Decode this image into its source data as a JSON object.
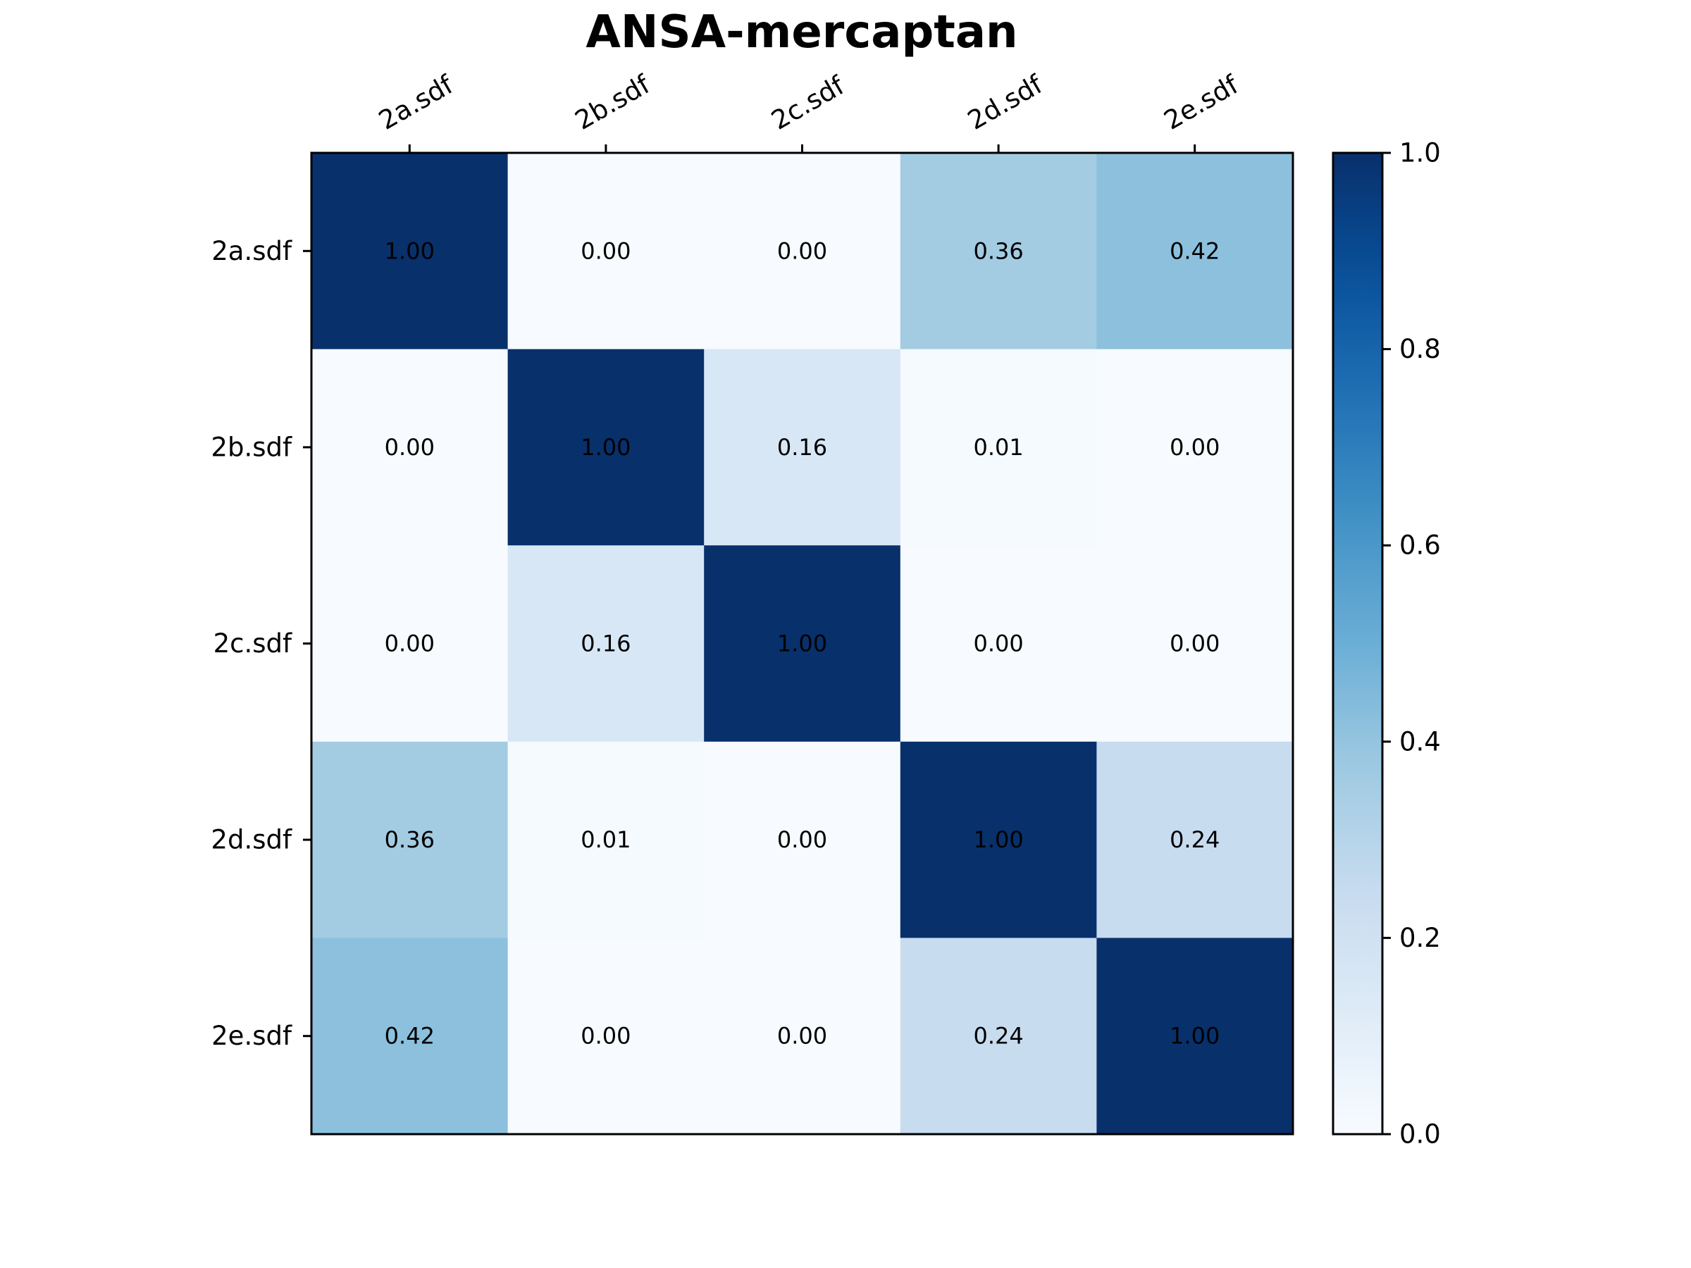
{
  "chart_data": {
    "type": "heatmap",
    "title": "ANSA-mercaptan",
    "x_labels": [
      "2a.sdf",
      "2b.sdf",
      "2c.sdf",
      "2d.sdf",
      "2e.sdf"
    ],
    "y_labels": [
      "2a.sdf",
      "2b.sdf",
      "2c.sdf",
      "2d.sdf",
      "2e.sdf"
    ],
    "values": [
      [
        1.0,
        0.0,
        0.0,
        0.36,
        0.42
      ],
      [
        0.0,
        1.0,
        0.16,
        0.01,
        0.0
      ],
      [
        0.0,
        0.16,
        1.0,
        0.0,
        0.0
      ],
      [
        0.36,
        0.01,
        0.0,
        1.0,
        0.24
      ],
      [
        0.42,
        0.0,
        0.0,
        0.24,
        1.0
      ]
    ],
    "value_format": "0.00",
    "colormap": "Blues",
    "vmin": 0.0,
    "vmax": 1.0,
    "colorbar": {
      "ticks": [
        "0.0",
        "0.2",
        "0.4",
        "0.6",
        "0.8",
        "1.0"
      ]
    },
    "colors": {
      "low": "#f7fbff",
      "high": "#08306b"
    }
  }
}
